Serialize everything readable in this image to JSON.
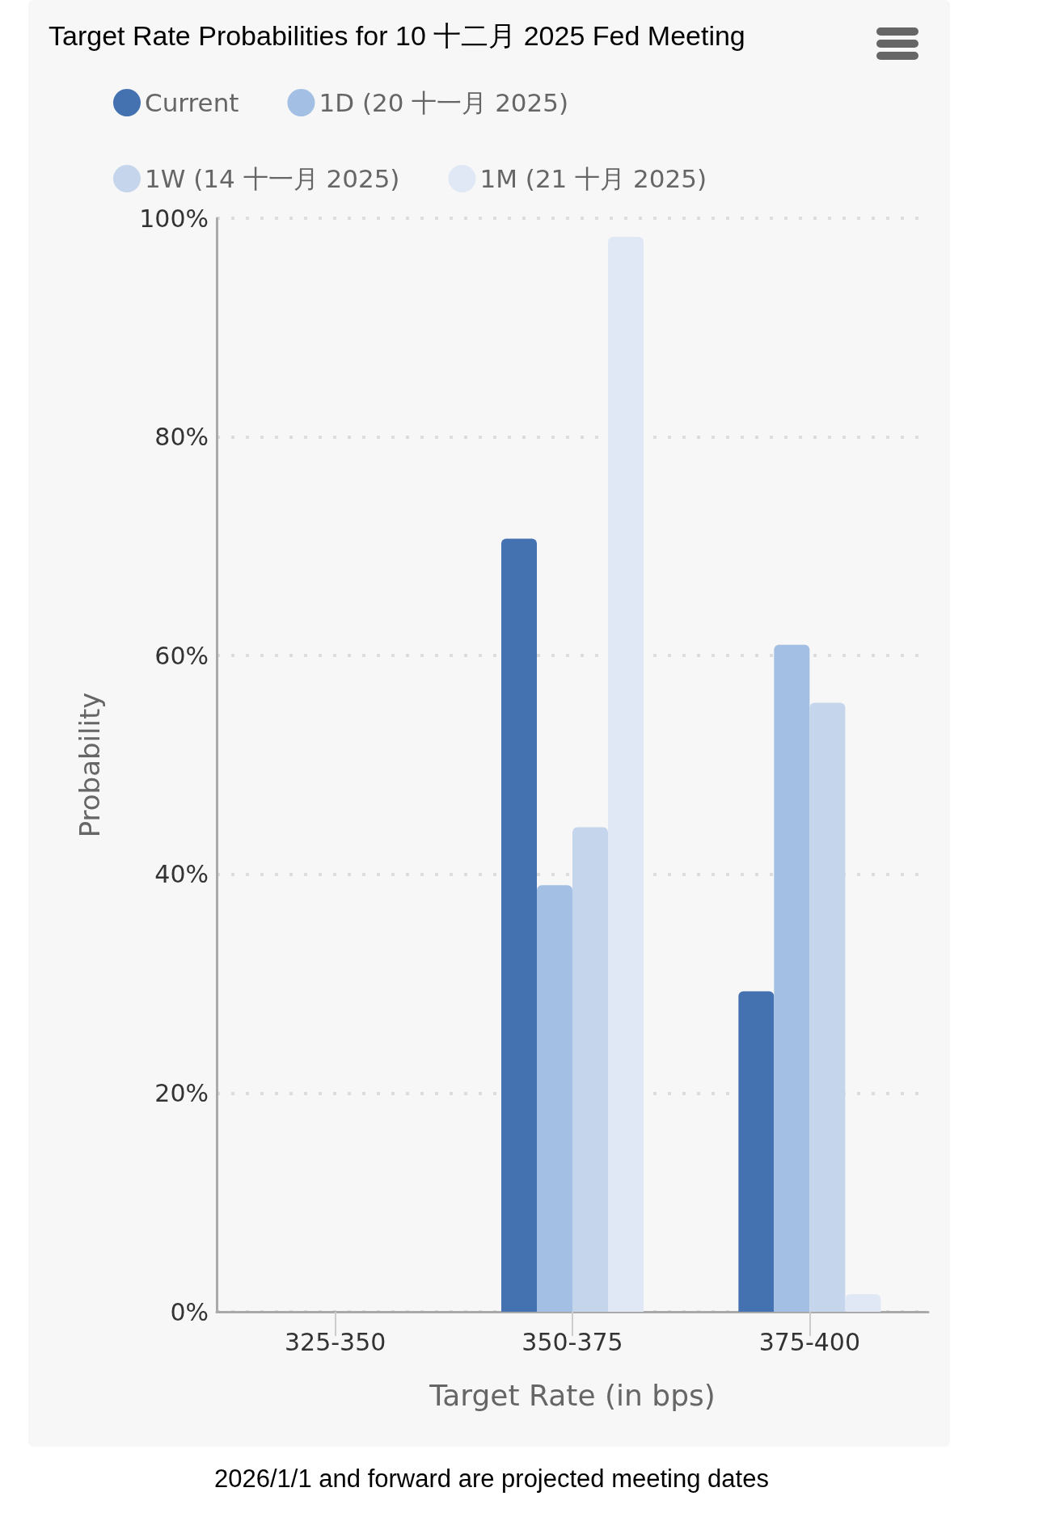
{
  "chart_data": {
    "type": "bar",
    "title": "Target Rate Probabilities for 10 十二月 2025 Fed Meeting",
    "xlabel": "Target Rate (in bps)",
    "ylabel": "Probability",
    "categories": [
      "325-350",
      "350-375",
      "375-400"
    ],
    "series": [
      {
        "name": "Current",
        "color": "#4472b0",
        "values": [
          0,
          70.7,
          29.3
        ]
      },
      {
        "name": "1D (20 十一月 2025)",
        "color": "#a3bfe3",
        "values": [
          0,
          39.0,
          61.0
        ]
      },
      {
        "name": "1W (14 十一月 2025)",
        "color": "#c5d6ec",
        "values": [
          0,
          44.3,
          55.7
        ]
      },
      {
        "name": "1M (21 十月 2025)",
        "color": "#dfe8f4",
        "values": [
          null,
          98.3,
          1.6
        ]
      }
    ],
    "ylim": [
      0,
      100
    ],
    "yticks": [
      {
        "value": 0,
        "label": "0%"
      },
      {
        "value": 20,
        "label": "20%"
      },
      {
        "value": 40,
        "label": "40%"
      },
      {
        "value": 60,
        "label": "60%"
      },
      {
        "value": 80,
        "label": "80%"
      },
      {
        "value": 100,
        "label": "100%"
      }
    ],
    "grid": "y",
    "legend": "top",
    "annotations": [
      "2026/1/1 and forward are projected meeting dates"
    ]
  }
}
